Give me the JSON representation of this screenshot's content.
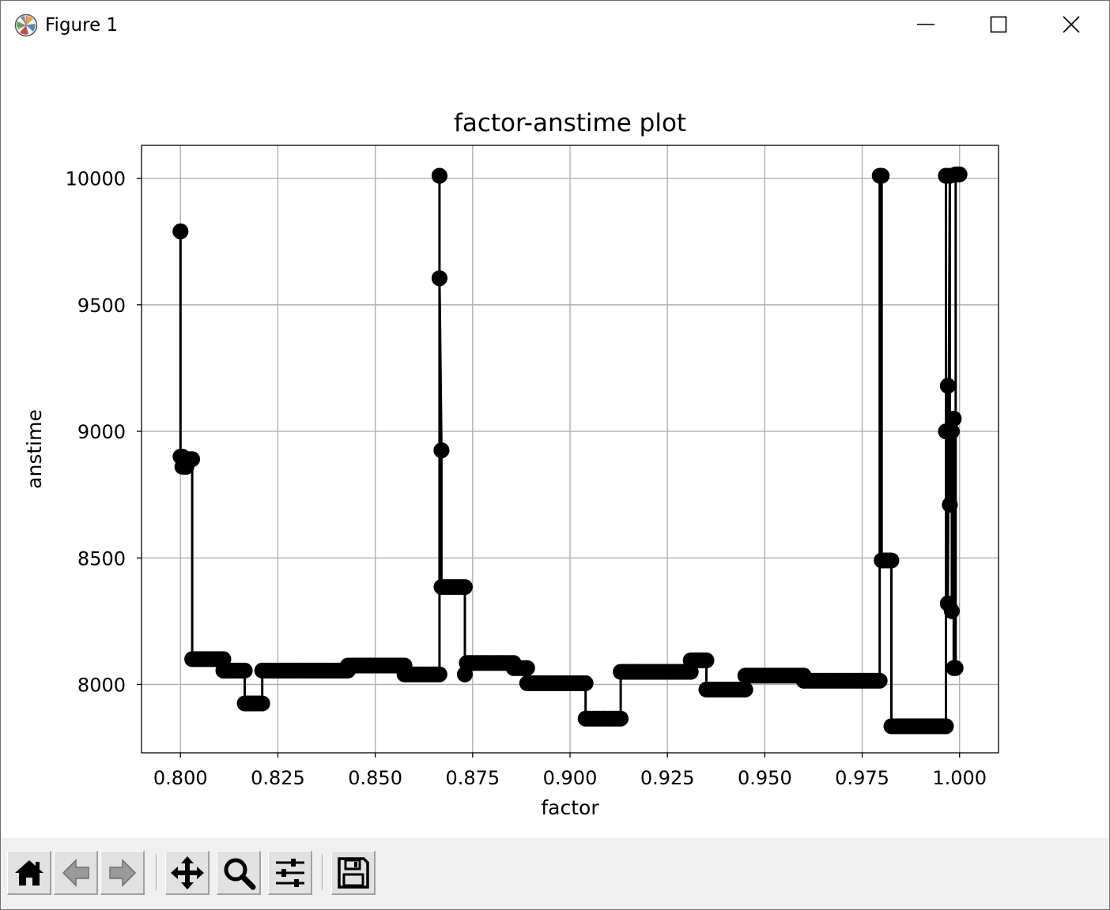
{
  "window": {
    "title": "Figure 1",
    "icon": "matplotlib-logo-icon",
    "controls": [
      "minimize-icon",
      "maximize-icon",
      "close-icon"
    ]
  },
  "chart_data": {
    "type": "line",
    "title": "factor-anstime plot",
    "xlabel": "factor",
    "ylabel": "anstime",
    "xlim": [
      0.79,
      1.01
    ],
    "ylim": [
      7730,
      10130
    ],
    "xticks": [
      "0.800",
      "0.825",
      "0.850",
      "0.875",
      "0.900",
      "0.925",
      "0.950",
      "0.975",
      "1.000"
    ],
    "yticks": [
      "8000",
      "8500",
      "9000",
      "9500",
      "10000"
    ],
    "grid": true,
    "marker": "circle",
    "color": "#000000",
    "drawstyle": "steps-post",
    "segments": [
      {
        "x0": 0.8,
        "x1": 0.8,
        "y": 9790
      },
      {
        "x0": 0.8,
        "x1": 0.8005,
        "y": 8900
      },
      {
        "x0": 0.8005,
        "x1": 0.8015,
        "y": 8860
      },
      {
        "x0": 0.8015,
        "x1": 0.803,
        "y": 8890
      },
      {
        "x0": 0.803,
        "x1": 0.811,
        "y": 8100
      },
      {
        "x0": 0.811,
        "x1": 0.8165,
        "y": 8055
      },
      {
        "x0": 0.8165,
        "x1": 0.821,
        "y": 7925
      },
      {
        "x0": 0.821,
        "x1": 0.843,
        "y": 8055
      },
      {
        "x0": 0.843,
        "x1": 0.8575,
        "y": 8075
      },
      {
        "x0": 0.8575,
        "x1": 0.8665,
        "y": 8040
      },
      {
        "x0": 0.8665,
        "x1": 0.8665,
        "y": 10010
      },
      {
        "x0": 0.8665,
        "x1": 0.8665,
        "y": 9605
      },
      {
        "x0": 0.867,
        "x1": 0.867,
        "y": 8925
      },
      {
        "x0": 0.867,
        "x1": 0.873,
        "y": 8385
      },
      {
        "x0": 0.873,
        "x1": 0.873,
        "y": 8040
      },
      {
        "x0": 0.8735,
        "x1": 0.8855,
        "y": 8085
      },
      {
        "x0": 0.8855,
        "x1": 0.889,
        "y": 8065
      },
      {
        "x0": 0.889,
        "x1": 0.904,
        "y": 8005
      },
      {
        "x0": 0.904,
        "x1": 0.913,
        "y": 7865
      },
      {
        "x0": 0.913,
        "x1": 0.931,
        "y": 8050
      },
      {
        "x0": 0.931,
        "x1": 0.935,
        "y": 8095
      },
      {
        "x0": 0.935,
        "x1": 0.945,
        "y": 7980
      },
      {
        "x0": 0.945,
        "x1": 0.96,
        "y": 8035
      },
      {
        "x0": 0.96,
        "x1": 0.9795,
        "y": 8015
      },
      {
        "x0": 0.9795,
        "x1": 0.98,
        "y": 10010
      },
      {
        "x0": 0.98,
        "x1": 0.9825,
        "y": 8490
      },
      {
        "x0": 0.9825,
        "x1": 0.9965,
        "y": 7835
      },
      {
        "x0": 0.9965,
        "x1": 0.9965,
        "y": 10010
      },
      {
        "x0": 0.9965,
        "x1": 0.9965,
        "y": 9000
      },
      {
        "x0": 0.997,
        "x1": 0.997,
        "y": 9180
      },
      {
        "x0": 0.997,
        "x1": 0.997,
        "y": 8320
      },
      {
        "x0": 0.9975,
        "x1": 0.9975,
        "y": 10010
      },
      {
        "x0": 0.9975,
        "x1": 0.9975,
        "y": 8710
      },
      {
        "x0": 0.998,
        "x1": 0.998,
        "y": 9000
      },
      {
        "x0": 0.998,
        "x1": 0.998,
        "y": 8290
      },
      {
        "x0": 0.9985,
        "x1": 0.9985,
        "y": 9050
      },
      {
        "x0": 0.9985,
        "x1": 0.999,
        "y": 8065
      },
      {
        "x0": 0.999,
        "x1": 1.0,
        "y": 10015
      }
    ]
  },
  "toolbar": {
    "buttons": [
      "home-icon",
      "back-arrow-icon",
      "forward-arrow-icon",
      "pan-move-icon",
      "zoom-magnifier-icon",
      "configure-subplots-icon",
      "save-floppy-icon"
    ]
  }
}
